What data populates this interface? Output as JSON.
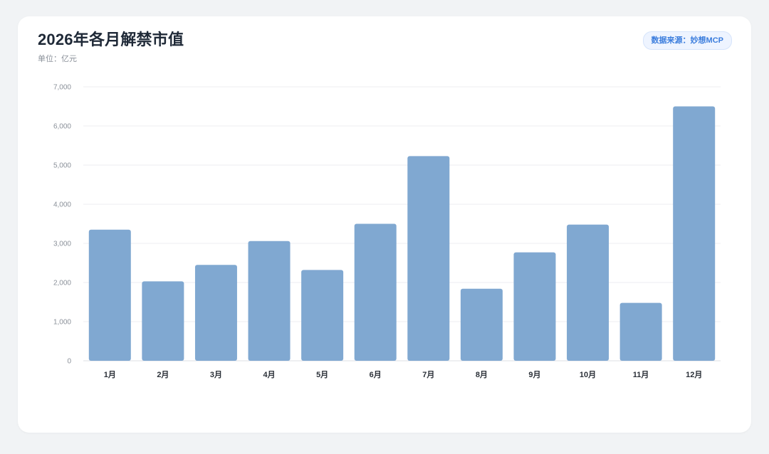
{
  "header": {
    "title": "2026年各月解禁市值",
    "unit": "单位：亿元",
    "source": "数据来源：妙想MCP"
  },
  "colors": {
    "bar": "#80a8d1",
    "grid": "#eceef1",
    "axis": "#dcdfe4"
  },
  "chart_data": {
    "type": "bar",
    "title": "2026年各月解禁市值",
    "xlabel": "",
    "ylabel": "",
    "categories": [
      "1月",
      "2月",
      "3月",
      "4月",
      "5月",
      "6月",
      "7月",
      "8月",
      "9月",
      "10月",
      "11月",
      "12月"
    ],
    "values": [
      3350,
      2030,
      2450,
      3060,
      2320,
      3500,
      5230,
      1840,
      2770,
      3480,
      1480,
      6500
    ],
    "ylim": [
      0,
      7000
    ],
    "yticks": [
      0,
      1000,
      2000,
      3000,
      4000,
      5000,
      6000,
      7000
    ],
    "ytick_labels": [
      "0",
      "1,000",
      "2,000",
      "3,000",
      "4,000",
      "5,000",
      "6,000",
      "7,000"
    ],
    "grid": true,
    "legend": "none"
  }
}
